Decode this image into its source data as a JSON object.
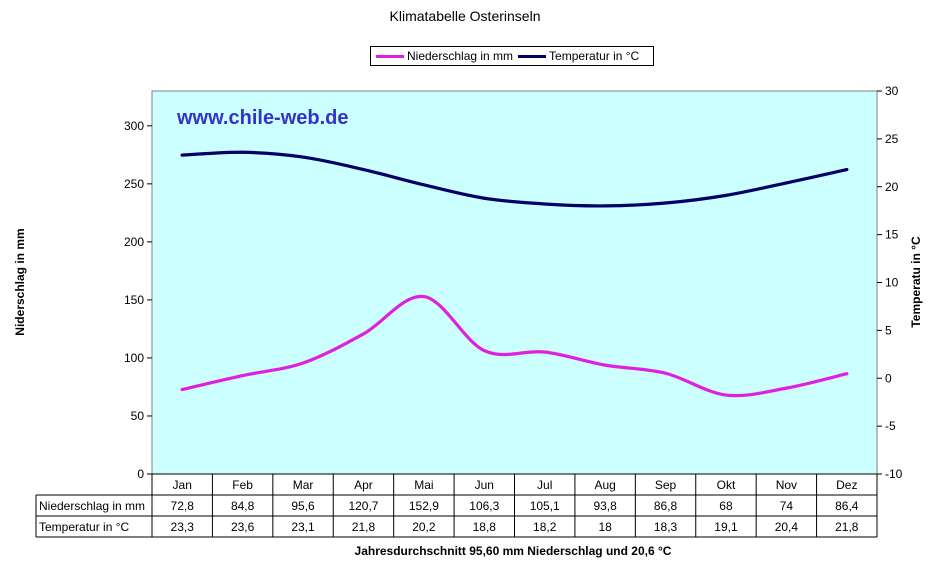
{
  "chart_data": {
    "type": "line",
    "title": "Klimatabelle Osterinseln",
    "watermark": "www.chile-web.de",
    "categories": [
      "Jan",
      "Feb",
      "Mar",
      "Apr",
      "Mai",
      "Jun",
      "Jul",
      "Aug",
      "Sep",
      "Okt",
      "Nov",
      "Dez"
    ],
    "series": [
      {
        "name": "Niederschlag in mm",
        "axis": "left",
        "color": "#e020e0",
        "values": [
          72.8,
          84.8,
          95.6,
          120.7,
          152.9,
          106.3,
          105.1,
          93.8,
          86.8,
          68,
          74,
          86.4
        ],
        "labels": [
          "72,8",
          "84,8",
          "95,6",
          "120,7",
          "152,9",
          "106,3",
          "105,1",
          "93,8",
          "86,8",
          "68",
          "74",
          "86,4"
        ]
      },
      {
        "name": "Temperatur in °C",
        "axis": "right",
        "color": "#000066",
        "values": [
          23.3,
          23.6,
          23.1,
          21.8,
          20.2,
          18.8,
          18.2,
          18,
          18.3,
          19.1,
          20.4,
          21.8
        ],
        "labels": [
          "23,3",
          "23,6",
          "23,1",
          "21,8",
          "20,2",
          "18,8",
          "18,2",
          "18",
          "18,3",
          "19,1",
          "20,4",
          "21,8"
        ]
      }
    ],
    "ylabel": "Niderschlag in mm",
    "y2label": "Temperatu in °C",
    "ylim": [
      0,
      330
    ],
    "y2lim": [
      -10,
      30
    ],
    "yticks": [
      0,
      50,
      100,
      150,
      200,
      250,
      300
    ],
    "y2ticks": [
      -10,
      -5,
      0,
      5,
      10,
      15,
      20,
      25,
      30
    ],
    "table_row_labels": [
      "Niederschlag in mm",
      "Temperatur in °C"
    ],
    "plot_background": "#ccffff",
    "legend_position": "top",
    "grid": false,
    "footer": "Jahresdurchschnitt 95,60 mm Niederschlag und 20,6 °C"
  }
}
